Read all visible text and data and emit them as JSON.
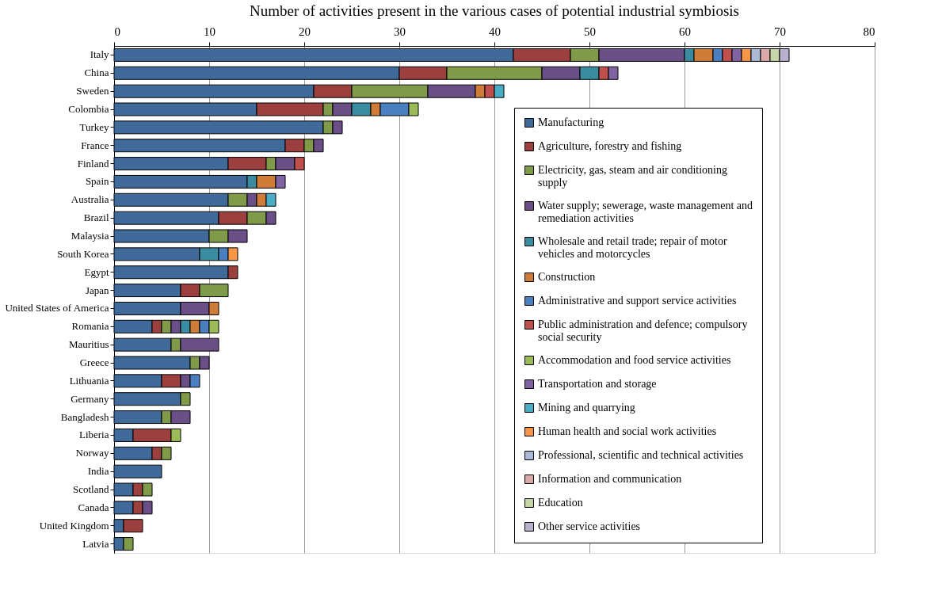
{
  "chart_data": {
    "type": "bar",
    "orientation": "horizontal",
    "stacked": true,
    "title": "Number of  activities present in the various cases of potential industrial symbiosis",
    "categories": [
      "Italy",
      "China",
      "Sweden",
      "Colombia",
      "Turkey",
      "France",
      "Finland",
      "Spain",
      "Australia",
      "Brazil",
      "Malaysia",
      "South Korea",
      "Egypt",
      "Japan",
      "United States of America",
      "Romania",
      "Mauritius",
      "Greece",
      "Lithuania",
      "Germany",
      "Bangladesh",
      "Liberia",
      "Norway",
      "India",
      "Scotland",
      "Canada",
      "United Kingdom",
      "Latvia"
    ],
    "xlim": [
      0,
      80
    ],
    "xticks": [
      0,
      10,
      20,
      30,
      40,
      50,
      60,
      70,
      80
    ],
    "grid": "x",
    "legend": "right",
    "series": [
      {
        "name": "Manufacturing",
        "color": "#3f6a9a",
        "values": [
          42,
          30,
          21,
          15,
          22,
          18,
          12,
          14,
          12,
          11,
          10,
          9,
          12,
          7,
          7,
          4,
          6,
          8,
          5,
          7,
          5,
          2,
          4,
          5,
          2,
          2,
          1,
          1
        ]
      },
      {
        "name": "Agriculture, forestry and fishing",
        "color": "#9c3f3f",
        "values": [
          6,
          5,
          4,
          7,
          null,
          2,
          4,
          null,
          null,
          3,
          null,
          null,
          1,
          2,
          null,
          1,
          null,
          null,
          2,
          null,
          null,
          4,
          1,
          null,
          1,
          1,
          2,
          null
        ]
      },
      {
        "name": "Electricity, gas, steam and air conditioning supply",
        "color": "#7f9a48",
        "values": [
          3,
          10,
          8,
          1,
          1,
          1,
          1,
          null,
          2,
          2,
          2,
          null,
          null,
          3,
          null,
          1,
          1,
          1,
          null,
          1,
          1,
          null,
          1,
          null,
          1,
          null,
          null,
          1
        ]
      },
      {
        "name": "Water supply; sewerage, waste management and remediation activities",
        "color": "#6a4f86",
        "values": [
          9,
          4,
          5,
          2,
          1,
          1,
          2,
          null,
          1,
          1,
          2,
          null,
          null,
          null,
          3,
          1,
          4,
          1,
          1,
          null,
          2,
          null,
          null,
          null,
          null,
          1,
          null,
          null
        ]
      },
      {
        "name": "Wholesale and retail trade; repair of motor vehicles and motorcycles",
        "color": "#3a8ca0",
        "values": [
          1,
          2,
          null,
          2,
          null,
          null,
          null,
          1,
          null,
          null,
          null,
          2,
          null,
          null,
          null,
          1,
          null,
          null,
          null,
          null,
          null,
          null,
          null,
          null,
          null,
          null,
          null,
          null
        ]
      },
      {
        "name": "Construction",
        "color": "#cf7c38",
        "values": [
          2,
          null,
          1,
          1,
          null,
          null,
          null,
          2,
          1,
          null,
          null,
          null,
          null,
          null,
          1,
          1,
          null,
          null,
          null,
          null,
          null,
          null,
          null,
          null,
          null,
          null,
          null,
          null
        ]
      },
      {
        "name": "Administrative and support service activities",
        "color": "#4a7fc0",
        "values": [
          1,
          null,
          null,
          3,
          null,
          null,
          null,
          null,
          null,
          null,
          null,
          1,
          null,
          null,
          null,
          1,
          null,
          null,
          1,
          null,
          null,
          null,
          null,
          null,
          null,
          null,
          null,
          null
        ]
      },
      {
        "name": "Public administration and defence; compulsory social security",
        "color": "#c0504d",
        "values": [
          1,
          1,
          1,
          null,
          null,
          null,
          1,
          null,
          null,
          null,
          null,
          null,
          null,
          null,
          null,
          null,
          null,
          null,
          null,
          null,
          null,
          null,
          null,
          null,
          null,
          null,
          null,
          null
        ]
      },
      {
        "name": "Accommodation and food service activities",
        "color": "#9bbb59",
        "values": [
          null,
          null,
          null,
          1,
          null,
          null,
          null,
          null,
          null,
          null,
          null,
          null,
          null,
          null,
          null,
          1,
          null,
          null,
          null,
          null,
          null,
          1,
          null,
          null,
          null,
          null,
          null,
          null
        ]
      },
      {
        "name": "Transportation and storage",
        "color": "#8064a2",
        "values": [
          1,
          1,
          null,
          null,
          null,
          null,
          null,
          1,
          null,
          null,
          null,
          null,
          null,
          null,
          null,
          null,
          null,
          null,
          null,
          null,
          null,
          null,
          null,
          null,
          null,
          null,
          null,
          null
        ]
      },
      {
        "name": "Mining and quarrying",
        "color": "#4bacc6",
        "values": [
          null,
          null,
          1,
          null,
          null,
          null,
          null,
          null,
          1,
          null,
          null,
          null,
          null,
          null,
          null,
          null,
          null,
          null,
          null,
          null,
          null,
          null,
          null,
          null,
          null,
          null,
          null,
          null
        ]
      },
      {
        "name": "Human health and social work activities",
        "color": "#f79646",
        "values": [
          1,
          null,
          null,
          null,
          null,
          null,
          null,
          null,
          null,
          null,
          null,
          1,
          null,
          null,
          null,
          null,
          null,
          null,
          null,
          null,
          null,
          null,
          null,
          null,
          null,
          null,
          null,
          null
        ]
      },
      {
        "name": "Professional, scientific and technical activities",
        "color": "#a9b9d6",
        "values": [
          1,
          null,
          null,
          null,
          null,
          null,
          null,
          null,
          null,
          null,
          null,
          null,
          null,
          null,
          null,
          null,
          null,
          null,
          null,
          null,
          null,
          null,
          null,
          null,
          null,
          null,
          null,
          null
        ]
      },
      {
        "name": "Information and communication",
        "color": "#dba9a8",
        "values": [
          1,
          null,
          null,
          null,
          null,
          null,
          null,
          null,
          null,
          null,
          null,
          null,
          null,
          null,
          null,
          null,
          null,
          null,
          null,
          null,
          null,
          null,
          null,
          null,
          null,
          null,
          null,
          null
        ]
      },
      {
        "name": "Education",
        "color": "#c6d6a9",
        "values": [
          1,
          null,
          null,
          null,
          null,
          null,
          null,
          null,
          null,
          null,
          null,
          null,
          null,
          null,
          null,
          null,
          null,
          null,
          null,
          null,
          null,
          null,
          null,
          null,
          null,
          null,
          null,
          null
        ]
      },
      {
        "name": "Other service activities",
        "color": "#b8b0cc",
        "values": [
          1,
          null,
          null,
          null,
          null,
          null,
          null,
          null,
          null,
          null,
          null,
          null,
          null,
          null,
          null,
          null,
          null,
          null,
          null,
          null,
          null,
          null,
          null,
          null,
          null,
          null,
          null,
          null
        ]
      }
    ]
  }
}
